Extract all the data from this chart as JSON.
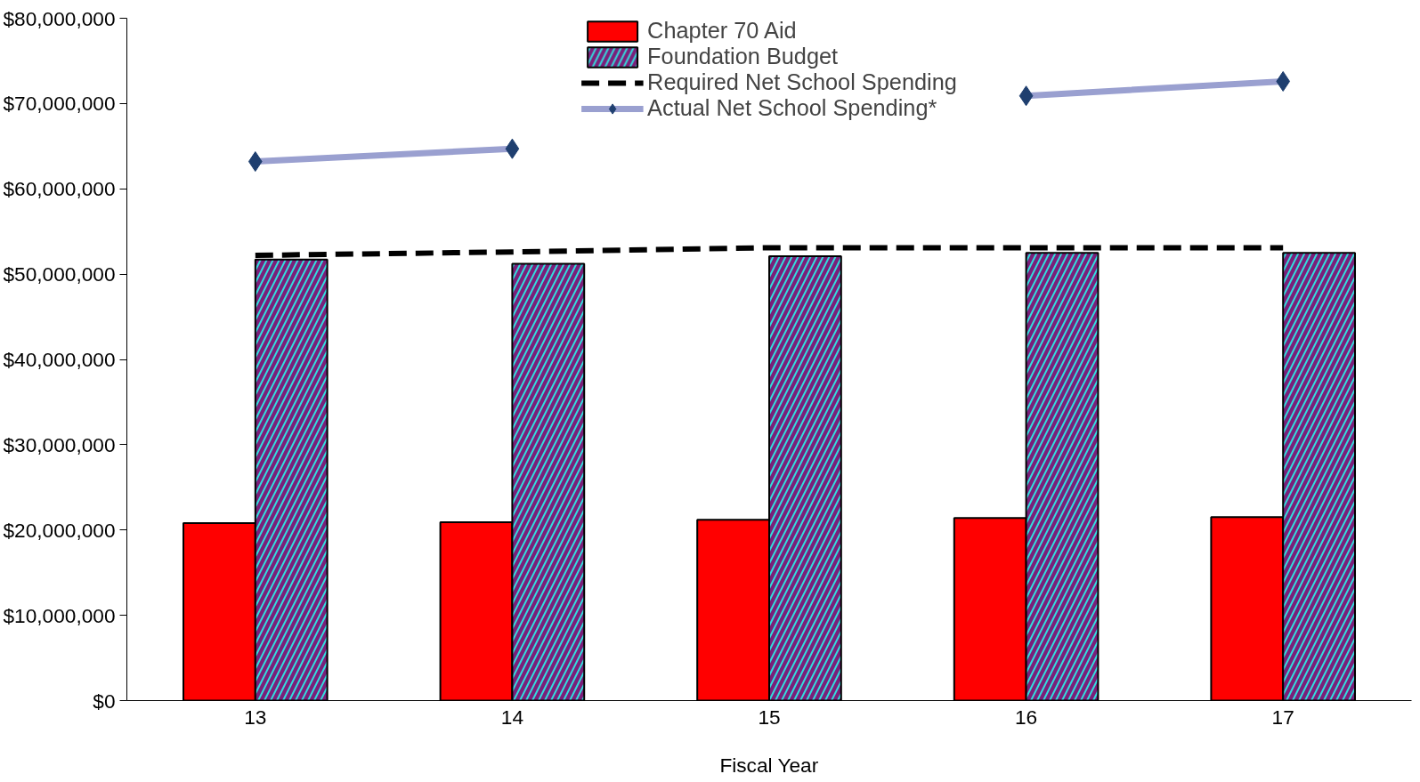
{
  "chart_data": {
    "type": "bar",
    "xlabel": "Fiscal Year",
    "categories": [
      "13",
      "14",
      "15",
      "16",
      "17"
    ],
    "series": [
      {
        "name": "Chapter 70 Aid",
        "color": "#ff0000",
        "values": [
          20800000,
          20900000,
          21200000,
          21400000,
          21500000
        ]
      },
      {
        "name": "Foundation Budget",
        "color": "#7a1f7a",
        "values": [
          51700000,
          51200000,
          52100000,
          52500000,
          52500000
        ]
      },
      {
        "name": "Required Net School Spending",
        "type": "line",
        "color": "#000000",
        "line_style": "dashed",
        "marker": "none",
        "values": [
          52200000,
          52600000,
          53100000,
          53100000,
          53100000
        ]
      },
      {
        "name": "Actual Net School Spending*",
        "type": "line",
        "color": "#9aa0d0",
        "line_style": "solid",
        "marker": "diamond",
        "values": [
          63200000,
          64700000,
          null,
          70900000,
          72600000
        ]
      }
    ],
    "ylim": [
      0,
      80000000
    ],
    "yticks": [
      {
        "value": 0,
        "label": "$0"
      },
      {
        "value": 10000000,
        "label": "$10,000,000"
      },
      {
        "value": 20000000,
        "label": "$20,000,000"
      },
      {
        "value": 30000000,
        "label": "$30,000,000"
      },
      {
        "value": 40000000,
        "label": "$40,000,000"
      },
      {
        "value": 50000000,
        "label": "$50,000,000"
      },
      {
        "value": 60000000,
        "label": "$60,000,000"
      },
      {
        "value": 70000000,
        "label": "$70,000,000"
      },
      {
        "value": 80000000,
        "label": "$80,000,000"
      }
    ],
    "grid": false,
    "legend": "top"
  }
}
